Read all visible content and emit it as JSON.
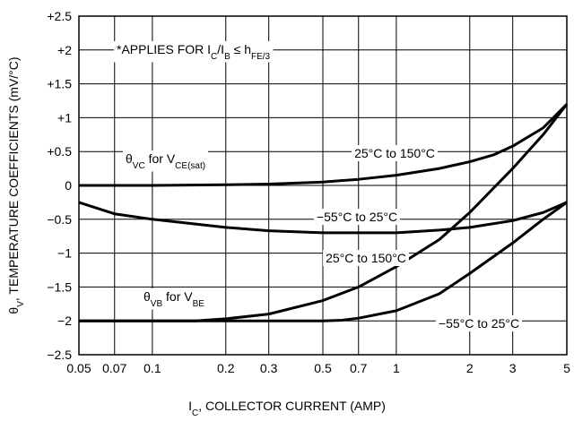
{
  "chart_data": {
    "type": "line",
    "x_label_parts": [
      "I",
      "C",
      ", COLLECTOR CURRENT (AMP)"
    ],
    "y_label_parts": [
      "θ",
      "V",
      ", TEMPERATURE COEFFICIENTS (mV/°C)"
    ],
    "annotation_parts": [
      "*APPLIES FOR I",
      "C",
      "/I",
      "B",
      " ≤ h",
      "FE/3"
    ],
    "group_labels": [
      [
        "θ",
        "VC",
        " for V",
        "CE(sat)"
      ],
      [
        "θ",
        "VB",
        " for V",
        "BE"
      ]
    ],
    "xscale": "log",
    "xlim": [
      0.05,
      5
    ],
    "xticks": [
      0.05,
      0.07,
      0.1,
      0.2,
      0.3,
      0.5,
      0.7,
      1,
      2,
      3,
      5
    ],
    "ylim": [
      -2.5,
      2.5
    ],
    "yticks": [
      {
        "value": -2.5,
        "label": "−2.5"
      },
      {
        "value": -2,
        "label": "−2"
      },
      {
        "value": -1.5,
        "label": "−1.5"
      },
      {
        "value": -1,
        "label": "−1"
      },
      {
        "value": -0.5,
        "label": "−0.5"
      },
      0,
      {
        "value": 0.5,
        "label": "+0.5"
      },
      {
        "value": 1,
        "label": "+1"
      },
      {
        "value": 1.5,
        "label": "+1.5"
      },
      {
        "value": 2,
        "label": "+2"
      },
      {
        "value": 2.5,
        "label": "+2.5"
      }
    ],
    "grid": true,
    "color": "#000000",
    "series": [
      {
        "name": "25°C to 150°C",
        "x": [
          0.05,
          0.1,
          0.2,
          0.3,
          0.5,
          0.7,
          1,
          1.5,
          2,
          2.5,
          3,
          4,
          5
        ],
        "values": [
          0.0,
          0.0,
          0.01,
          0.02,
          0.05,
          0.09,
          0.15,
          0.25,
          0.35,
          0.45,
          0.58,
          0.85,
          1.2
        ]
      },
      {
        "name": "−55°C to 25°C",
        "x": [
          0.05,
          0.07,
          0.1,
          0.2,
          0.3,
          0.5,
          1,
          1.5,
          2,
          3,
          4,
          5
        ],
        "values": [
          -0.25,
          -0.42,
          -0.5,
          -0.62,
          -0.67,
          -0.7,
          -0.7,
          -0.66,
          -0.62,
          -0.52,
          -0.4,
          -0.25
        ]
      },
      {
        "name": "25°C to 150°C",
        "x": [
          0.05,
          0.1,
          0.15,
          0.2,
          0.3,
          0.5,
          0.7,
          1,
          1.5,
          2,
          3,
          4,
          5
        ],
        "values": [
          -2.0,
          -2.0,
          -2.0,
          -1.97,
          -1.9,
          -1.7,
          -1.5,
          -1.2,
          -0.8,
          -0.4,
          0.25,
          0.75,
          1.2
        ]
      },
      {
        "name": "−55°C to 25°C",
        "x": [
          0.05,
          0.1,
          0.2,
          0.3,
          0.5,
          0.6,
          0.7,
          1,
          1.5,
          2,
          3,
          4,
          5
        ],
        "values": [
          -2.0,
          -2.0,
          -2.0,
          -2.0,
          -2.0,
          -1.99,
          -1.96,
          -1.85,
          -1.6,
          -1.3,
          -0.85,
          -0.5,
          -0.25
        ]
      }
    ]
  }
}
